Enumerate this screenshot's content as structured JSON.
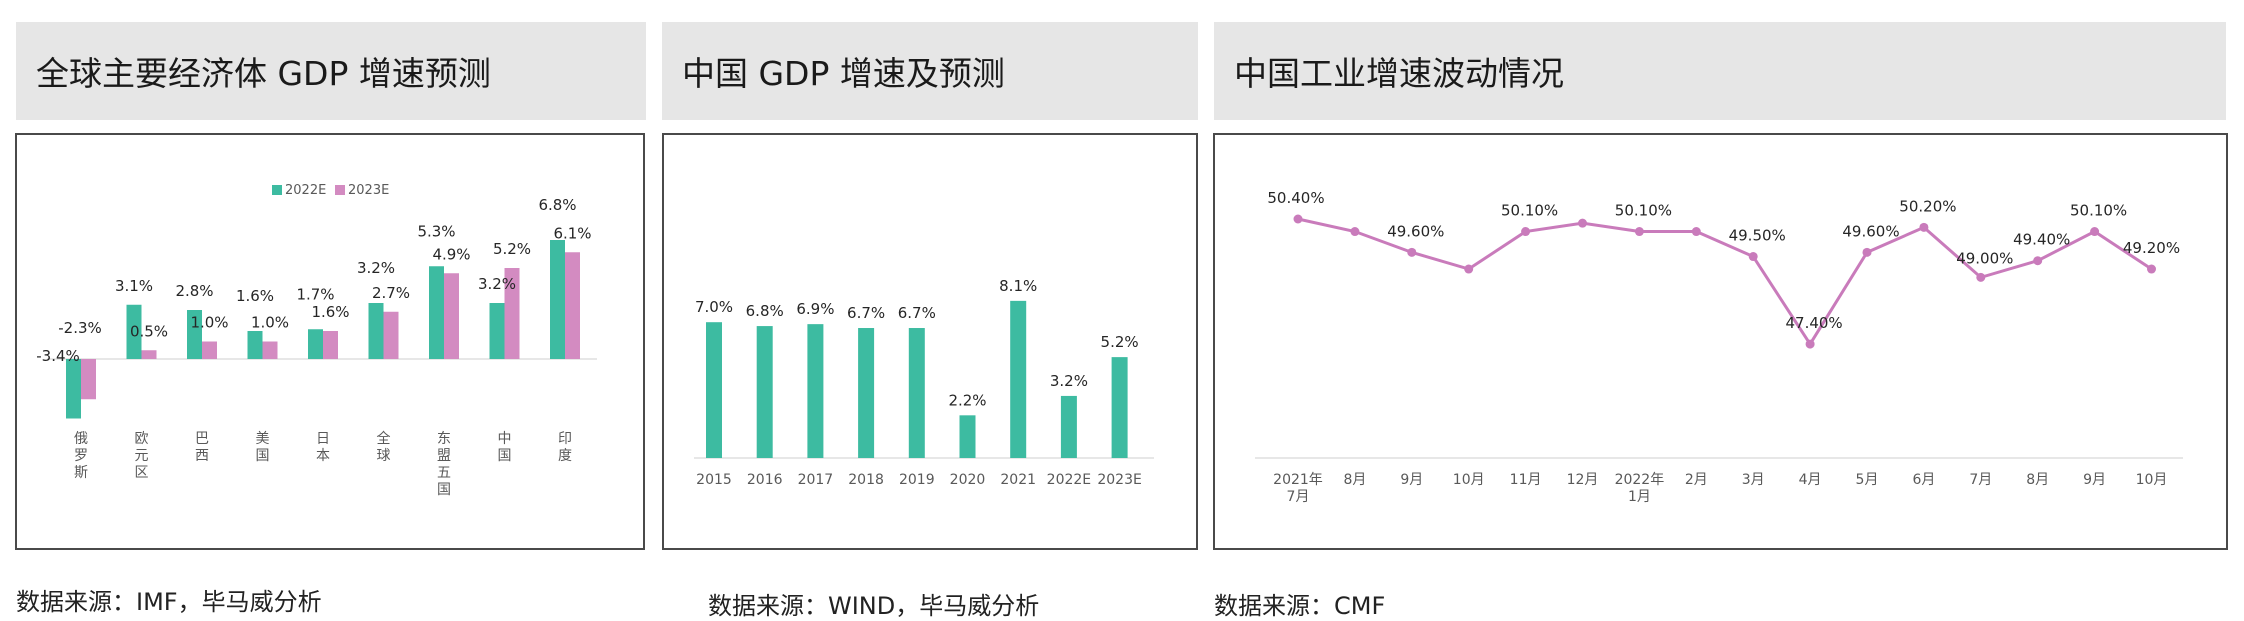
{
  "colors": {
    "teal": "#3dbba1",
    "pink": "#d38bc1",
    "line": "#c97bbb",
    "axis": "#cfcfcf"
  },
  "panels": [
    {
      "title": "全球主要经济体 GDP 增速预测",
      "source": "数据来源：IMF，毕马威分析"
    },
    {
      "title": "中国 GDP 增速及预测",
      "source": "数据来源：WIND，毕马威分析"
    },
    {
      "title": "中国工业增速波动情况",
      "source": "数据来源：CMF"
    }
  ],
  "chart_data": [
    {
      "type": "bar",
      "categories": [
        "俄罗斯",
        "欧元区",
        "巴西",
        "美国",
        "日本",
        "全球",
        "东盟五国",
        "中国",
        "印度"
      ],
      "series": [
        {
          "name": "2022E",
          "values": [
            -3.4,
            3.1,
            2.8,
            1.6,
            1.7,
            3.2,
            5.3,
            3.2,
            6.8
          ],
          "labels": [
            "-3.4%",
            "3.1%",
            "2.8%",
            "1.6%",
            "1.7%",
            "3.2%",
            "5.3%",
            "3.2%",
            "6.8%"
          ]
        },
        {
          "name": "2023E",
          "values": [
            -2.3,
            0.5,
            1.0,
            1.0,
            1.6,
            2.7,
            4.9,
            5.2,
            6.1
          ],
          "labels": [
            "-2.3%",
            "0.5%",
            "1.0%",
            "1.0%",
            "1.6%",
            "2.7%",
            "4.9%",
            "5.2%",
            "6.1%"
          ]
        }
      ],
      "legend": "top-center"
    },
    {
      "type": "bar",
      "categories": [
        "2015",
        "2016",
        "2017",
        "2018",
        "2019",
        "2020",
        "2021",
        "2022E",
        "2023E"
      ],
      "values": [
        7.0,
        6.8,
        6.9,
        6.7,
        6.7,
        2.2,
        8.1,
        3.2,
        5.2
      ],
      "labels": [
        "7.0%",
        "6.8%",
        "6.9%",
        "6.7%",
        "6.7%",
        "2.2%",
        "8.1%",
        "3.2%",
        "5.2%"
      ]
    },
    {
      "type": "line",
      "categories": [
        "2021年\n7月",
        "8月",
        "9月",
        "10月",
        "11月",
        "12月",
        "2022年\n1月",
        "2月",
        "3月",
        "4月",
        "5月",
        "6月",
        "7月",
        "8月",
        "9月",
        "10月"
      ],
      "values": [
        50.4,
        50.1,
        49.6,
        49.2,
        50.1,
        50.3,
        50.1,
        50.1,
        49.5,
        47.4,
        49.6,
        50.2,
        49.0,
        49.4,
        50.1,
        49.2
      ],
      "labels": [
        "50.40%",
        "",
        "49.60%",
        "",
        "50.10%",
        "",
        "50.10%",
        "",
        "49.50%",
        "47.40%",
        "49.60%",
        "50.20%",
        "49.00%",
        "49.40%",
        "50.10%",
        "49.20%"
      ]
    }
  ]
}
